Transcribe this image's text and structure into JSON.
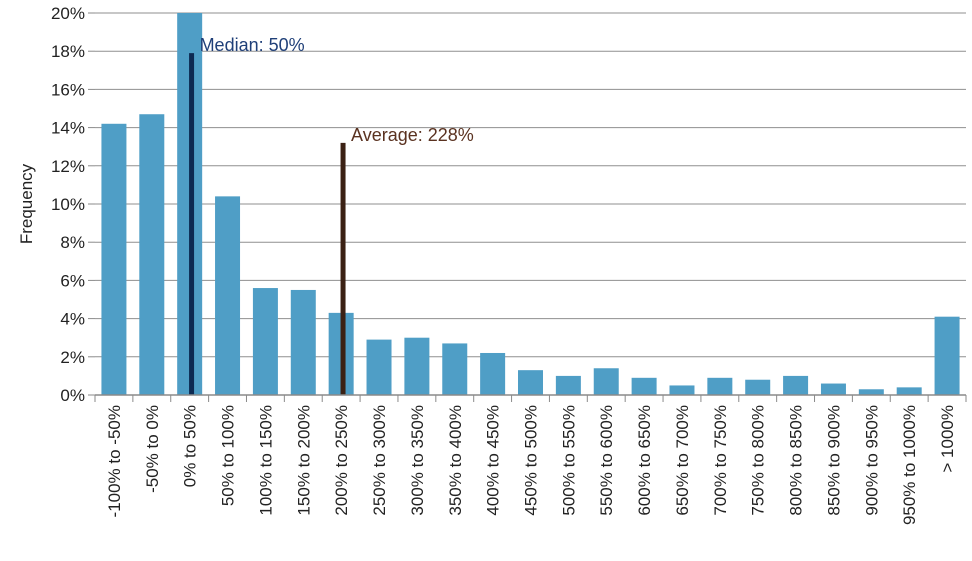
{
  "chart_data": {
    "type": "bar",
    "ylabel": "Frequency",
    "ylim": [
      0,
      20
    ],
    "y_ticks": [
      "0%",
      "2%",
      "4%",
      "6%",
      "8%",
      "10%",
      "12%",
      "14%",
      "16%",
      "18%",
      "20%"
    ],
    "y_tick_values": [
      0,
      2,
      4,
      6,
      8,
      10,
      12,
      14,
      16,
      18,
      20
    ],
    "grid": true,
    "bar_color": "#4f9ec6",
    "categories": [
      "-100% to -50%",
      "-50% to 0%",
      "0% to 50%",
      "50% to 100%",
      "100% to 150%",
      "150% to 200%",
      "200% to 250%",
      "250% to 300%",
      "300% to 350%",
      "350% to 400%",
      "400% to 450%",
      "450% to 500%",
      "500% to 550%",
      "550% to 600%",
      "600% to 650%",
      "650% to 700%",
      "700% to 750%",
      "750% to 800%",
      "800% to 850%",
      "850% to 900%",
      "900% to 950%",
      "950% to 1000%",
      "> 1000%"
    ],
    "values": [
      14.2,
      14.7,
      20.0,
      10.4,
      5.6,
      5.5,
      4.3,
      2.9,
      3.0,
      2.7,
      2.2,
      1.3,
      1.0,
      1.4,
      0.9,
      0.5,
      0.9,
      0.8,
      1.0,
      0.6,
      0.3,
      0.4,
      4.1
    ],
    "annotations": [
      {
        "label": "Median: 50%",
        "category_index": 2,
        "offset": 0.55,
        "top": 17.9,
        "color": "#0d2a52",
        "label_color": "#1f3f78"
      },
      {
        "label": "Average: 228%",
        "category_index": 6,
        "offset": 0.55,
        "top": 13.2,
        "color": "#3b2114",
        "label_color": "#5a3220"
      }
    ]
  }
}
